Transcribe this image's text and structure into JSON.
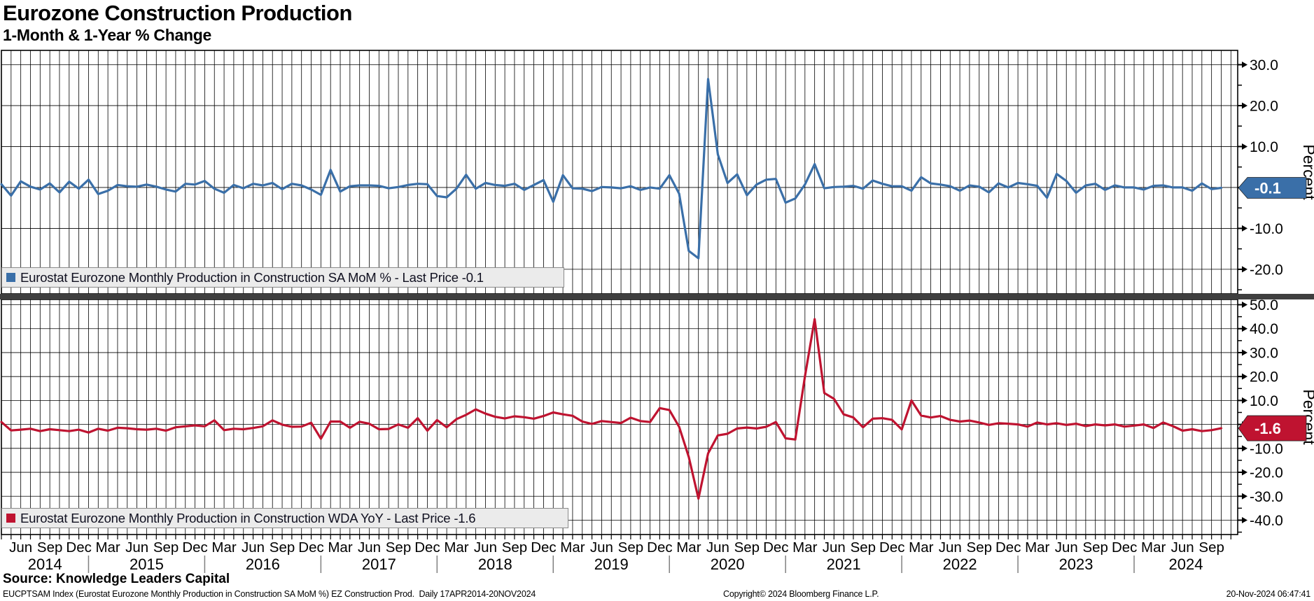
{
  "header": {
    "title": "Eurozone Construction Production",
    "subtitle": "1-Month & 1-Year % Change"
  },
  "footer": {
    "source": "Source:  Knowledge Leaders Capital",
    "descriptor": "EUCPTSAM Index (Eurostat Eurozone Monthly Production in Construction SA MoM %) EZ Construction Prod.  Daily 17APR2014-20NOV2024",
    "copyright": "Copyright© 2024 Bloomberg Finance L.P.",
    "timestamp": "20-Nov-2024 06:47:41"
  },
  "x_axis": {
    "month_labels": [
      "Jun",
      "Sep",
      "Dec",
      "Mar",
      "Jun",
      "Sep",
      "Dec",
      "Mar",
      "Jun",
      "Sep",
      "Dec",
      "Mar",
      "Jun",
      "Sep",
      "Dec",
      "Mar",
      "Jun",
      "Sep",
      "Dec",
      "Mar",
      "Jun",
      "Sep",
      "Dec",
      "Mar",
      "Jun",
      "Sep",
      "Dec",
      "Mar",
      "Jun",
      "Sep",
      "Dec",
      "Mar",
      "Jun",
      "Sep",
      "Dec",
      "Mar",
      "Jun",
      "Sep",
      "Dec",
      "Mar",
      "Jun",
      "Sep"
    ],
    "year_labels": [
      "2014",
      "2015",
      "2016",
      "2017",
      "2018",
      "2019",
      "2020",
      "2021",
      "2022",
      "2023",
      "2024"
    ]
  },
  "chart_data": [
    {
      "type": "line",
      "name": "Eurostat Eurozone Monthly Production in Construction SA MoM %",
      "legend": "Eurostat Eurozone Monthly Production in Construction SA MoM % - Last Price -0.1",
      "ylabel": "Percent",
      "color": "#3a6fa8",
      "tag_color": "#3a6fa8",
      "last_price": -0.1,
      "last_price_label": "-0.1",
      "x_start": "Apr 2014",
      "x_end": "Oct 2024",
      "frequency": "monthly",
      "ylim": [
        -26,
        33.5
      ],
      "yticks": [
        30,
        20,
        10,
        0,
        -10,
        -20
      ],
      "values": [
        0.8,
        -2.0,
        1.5,
        0.2,
        -0.5,
        1.0,
        -1.2,
        1.4,
        -0.3,
        1.9,
        -1.6,
        -0.8,
        0.6,
        0.3,
        0.2,
        0.7,
        0.2,
        -0.5,
        -1.0,
        0.9,
        0.7,
        1.6,
        -0.3,
        -1.3,
        0.6,
        -0.2,
        0.9,
        0.5,
        1.1,
        -0.4,
        0.9,
        0.5,
        -0.5,
        -1.8,
        4.3,
        -1.0,
        0.3,
        0.5,
        0.5,
        0.4,
        -0.2,
        0.1,
        0.6,
        0.9,
        0.8,
        -2.1,
        -2.4,
        -0.3,
        3.1,
        -0.3,
        1.1,
        0.6,
        0.4,
        0.9,
        -0.6,
        0.6,
        1.8,
        -3.5,
        3.0,
        -0.2,
        -0.3,
        -0.9,
        0.1,
        0.0,
        -0.2,
        0.3,
        -0.6,
        0.0,
        -0.3,
        3.0,
        -1.5,
        -15.5,
        -17.3,
        26.5,
        8.1,
        1.1,
        3.2,
        -1.9,
        0.7,
        1.9,
        2.1,
        -3.7,
        -2.7,
        0.7,
        5.7,
        -0.2,
        0.1,
        0.2,
        0.4,
        -0.3,
        1.7,
        0.9,
        0.3,
        0.3,
        -0.8,
        2.5,
        1.0,
        0.7,
        0.3,
        -0.8,
        0.5,
        0.2,
        -1.2,
        1.0,
        0.0,
        1.1,
        0.8,
        0.4,
        -2.5,
        3.3,
        1.6,
        -1.3,
        0.5,
        0.9,
        -0.6,
        0.5,
        0.0,
        0.0,
        -0.5,
        0.4,
        0.5,
        0.0,
        0.0,
        -0.8,
        1.0,
        -0.4,
        -0.1
      ]
    },
    {
      "type": "line",
      "name": "Eurostat Eurozone Monthly Production in Construction WDA YoY",
      "legend": "Eurostat Eurozone Monthly Production in Construction WDA YoY - Last Price -1.6",
      "ylabel": "Percent",
      "color": "#bf1330",
      "tag_color": "#bf1330",
      "last_price": -1.6,
      "last_price_label": "-1.6",
      "x_start": "Apr 2014",
      "x_end": "Oct 2024",
      "frequency": "monthly",
      "ylim": [
        -46,
        52.2
      ],
      "yticks": [
        50,
        40,
        30,
        20,
        10,
        0,
        -10,
        -20,
        -30,
        -40
      ],
      "values": [
        1.0,
        -2.5,
        -2.2,
        -1.8,
        -2.8,
        -2.0,
        -2.4,
        -2.8,
        -2.2,
        -3.4,
        -1.8,
        -2.6,
        -1.4,
        -1.6,
        -2.0,
        -2.2,
        -1.8,
        -2.6,
        -1.2,
        -0.8,
        -0.4,
        -0.8,
        1.7,
        -2.4,
        -1.8,
        -2.0,
        -1.5,
        -0.8,
        1.7,
        -0.1,
        -1.0,
        -0.9,
        0.7,
        -6.0,
        1.2,
        1.2,
        -1.4,
        1.1,
        0.3,
        -2.0,
        -1.9,
        0.0,
        -1.4,
        2.6,
        -2.6,
        1.8,
        -1.2,
        2.2,
        4.0,
        6.3,
        4.5,
        3.2,
        2.5,
        3.4,
        3.0,
        2.4,
        3.5,
        5.0,
        4.2,
        3.6,
        1.2,
        0.2,
        1.4,
        1.0,
        0.6,
        2.8,
        1.4,
        1.0,
        6.8,
        6.0,
        -1.0,
        -13.6,
        -31.0,
        -12.1,
        -4.6,
        -3.9,
        -1.7,
        -1.3,
        -1.7,
        -1.0,
        1.0,
        -5.8,
        -6.3,
        20.0,
        44.0,
        13.1,
        10.7,
        4.2,
        2.9,
        -1.2,
        2.4,
        2.6,
        1.9,
        -2.1,
        10.0,
        3.7,
        2.9,
        3.5,
        1.9,
        1.2,
        1.6,
        0.8,
        -0.2,
        0.5,
        0.3,
        0.0,
        -0.9,
        0.8,
        0.0,
        0.5,
        -0.2,
        0.3,
        -0.7,
        0.0,
        -0.4,
        0.0,
        -0.9,
        -0.5,
        0.0,
        -1.5,
        0.8,
        -0.7,
        -2.6,
        -2.0,
        -2.8,
        -2.4,
        -1.6
      ]
    }
  ]
}
